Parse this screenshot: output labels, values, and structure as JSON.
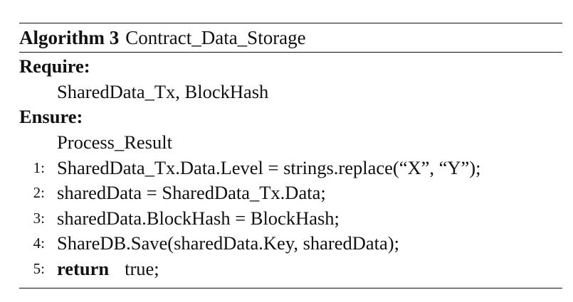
{
  "algorithm": {
    "label": "Algorithm 3",
    "name": "Contract_Data_Storage",
    "require_label": "Require:",
    "require_value": "SharedData_Tx, BlockHash",
    "ensure_label": "Ensure:",
    "ensure_value": "Process_Result",
    "steps": [
      {
        "num": "1:",
        "text": "SharedData_Tx.Data.Level = strings.replace(“X”, “Y”);"
      },
      {
        "num": "2:",
        "text": "sharedData = SharedData_Tx.Data;"
      },
      {
        "num": "3:",
        "text": "sharedData.BlockHash = BlockHash;"
      },
      {
        "num": "4:",
        "text": "ShareDB.Save(sharedData.Key, sharedData);"
      },
      {
        "num": "5:",
        "keyword": "return",
        "text": "true;"
      }
    ]
  }
}
